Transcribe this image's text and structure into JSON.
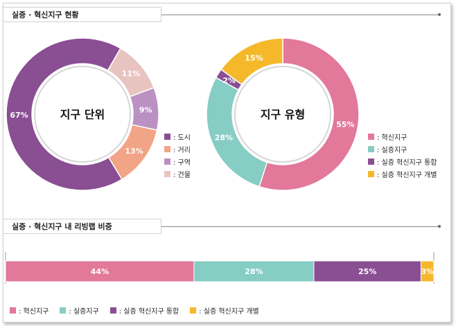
{
  "section1": {
    "title": "실증 · 혁신지구 현황"
  },
  "section2": {
    "title": "실증 · 혁신지구 내 리빙랩 비중"
  },
  "chart_data": [
    {
      "type": "pie",
      "center_label": "지구 단위",
      "categories": [
        "도시",
        "거리",
        "구역",
        "건물"
      ],
      "values": [
        67,
        13,
        9,
        11
      ],
      "value_labels": [
        "67%",
        "13%",
        "9%",
        "11%"
      ],
      "legend_labels": [
        ": 도시",
        ": 거리",
        ": 구역",
        ": 건물"
      ],
      "colors": [
        "#8a4e93",
        "#f2a486",
        "#bb91c3",
        "#e8c4c1"
      ]
    },
    {
      "type": "pie",
      "center_label": "지구 유형",
      "categories": [
        "혁신지구",
        "실증지구",
        "실증 혁신지구 통합",
        "실증 혁신지구 개별"
      ],
      "values": [
        55,
        28,
        2,
        15
      ],
      "value_labels": [
        "55%",
        "28%",
        "2%",
        "15%"
      ],
      "legend_labels": [
        ": 혁신지구",
        ": 실증지구",
        ": 실증 혁신지구 통합",
        ": 실증 혁신지구 개별"
      ],
      "colors": [
        "#e2789a",
        "#86cdc4",
        "#8a4e93",
        "#f6b82b"
      ]
    },
    {
      "type": "bar",
      "orientation": "horizontal-stacked",
      "categories": [
        "혁신지구",
        "실증지구",
        "실증 혁신지구 통합",
        "실증 혁신지구 개별"
      ],
      "values": [
        44,
        28,
        25,
        3
      ],
      "value_labels": [
        "44%",
        "28%",
        "25%",
        "3%"
      ],
      "legend_labels": [
        ": 혁신지구",
        ": 실증지구",
        ": 실증 혁신지구 통합",
        ": 실증 혁신지구 개별"
      ],
      "colors": [
        "#e2789a",
        "#86cdc4",
        "#8a4e93",
        "#f6b82b"
      ]
    }
  ]
}
